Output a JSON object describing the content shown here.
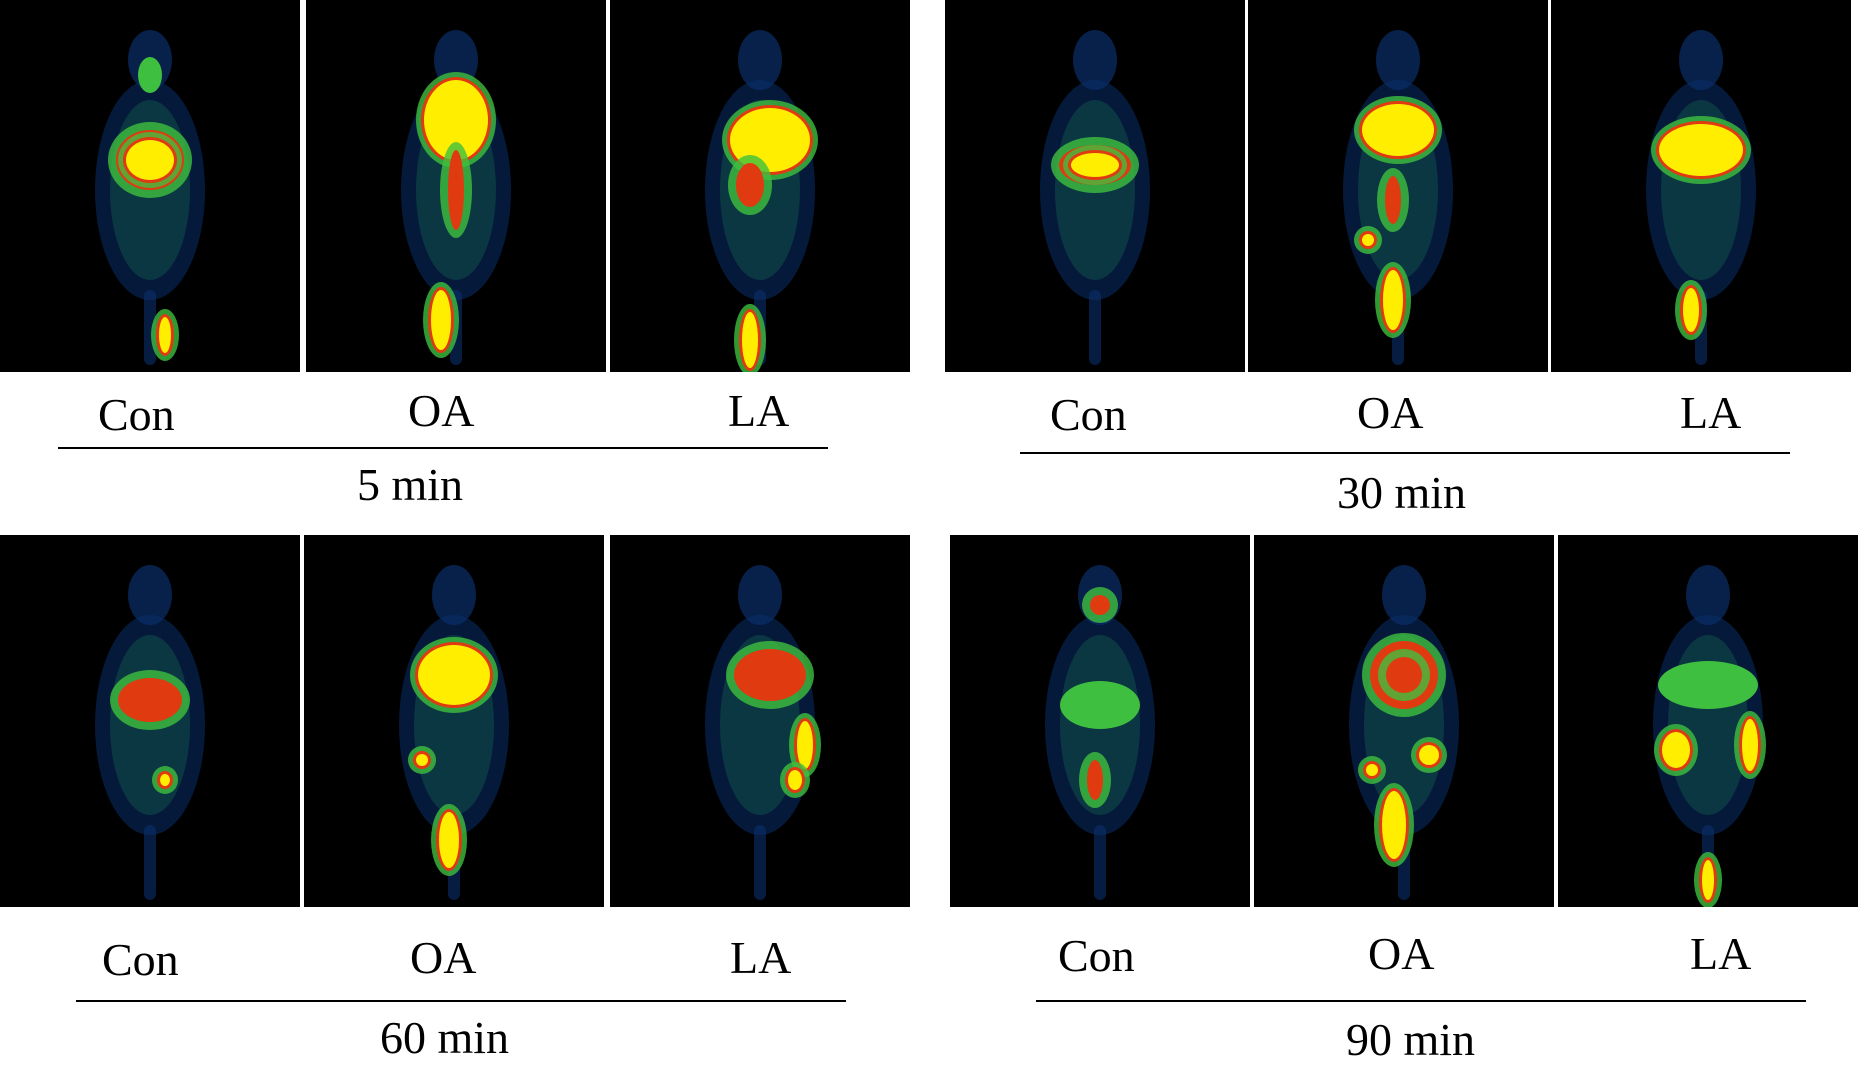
{
  "groups": [
    {
      "time": "5 min",
      "labels": [
        "Con",
        "OA",
        "LA"
      ]
    },
    {
      "time": "30 min",
      "labels": [
        "Con",
        "OA",
        "LA"
      ]
    },
    {
      "time": "60 min",
      "labels": [
        "Con",
        "OA",
        "LA"
      ]
    },
    {
      "time": "90 min",
      "labels": [
        "Con",
        "OA",
        "LA"
      ]
    }
  ],
  "colormap": {
    "background": "#000000",
    "low": "#0a2f6b",
    "mid_low": "#1f8f5a",
    "mid": "#3fbf3f",
    "high": "#e03a10",
    "peak": "#ffee00"
  }
}
